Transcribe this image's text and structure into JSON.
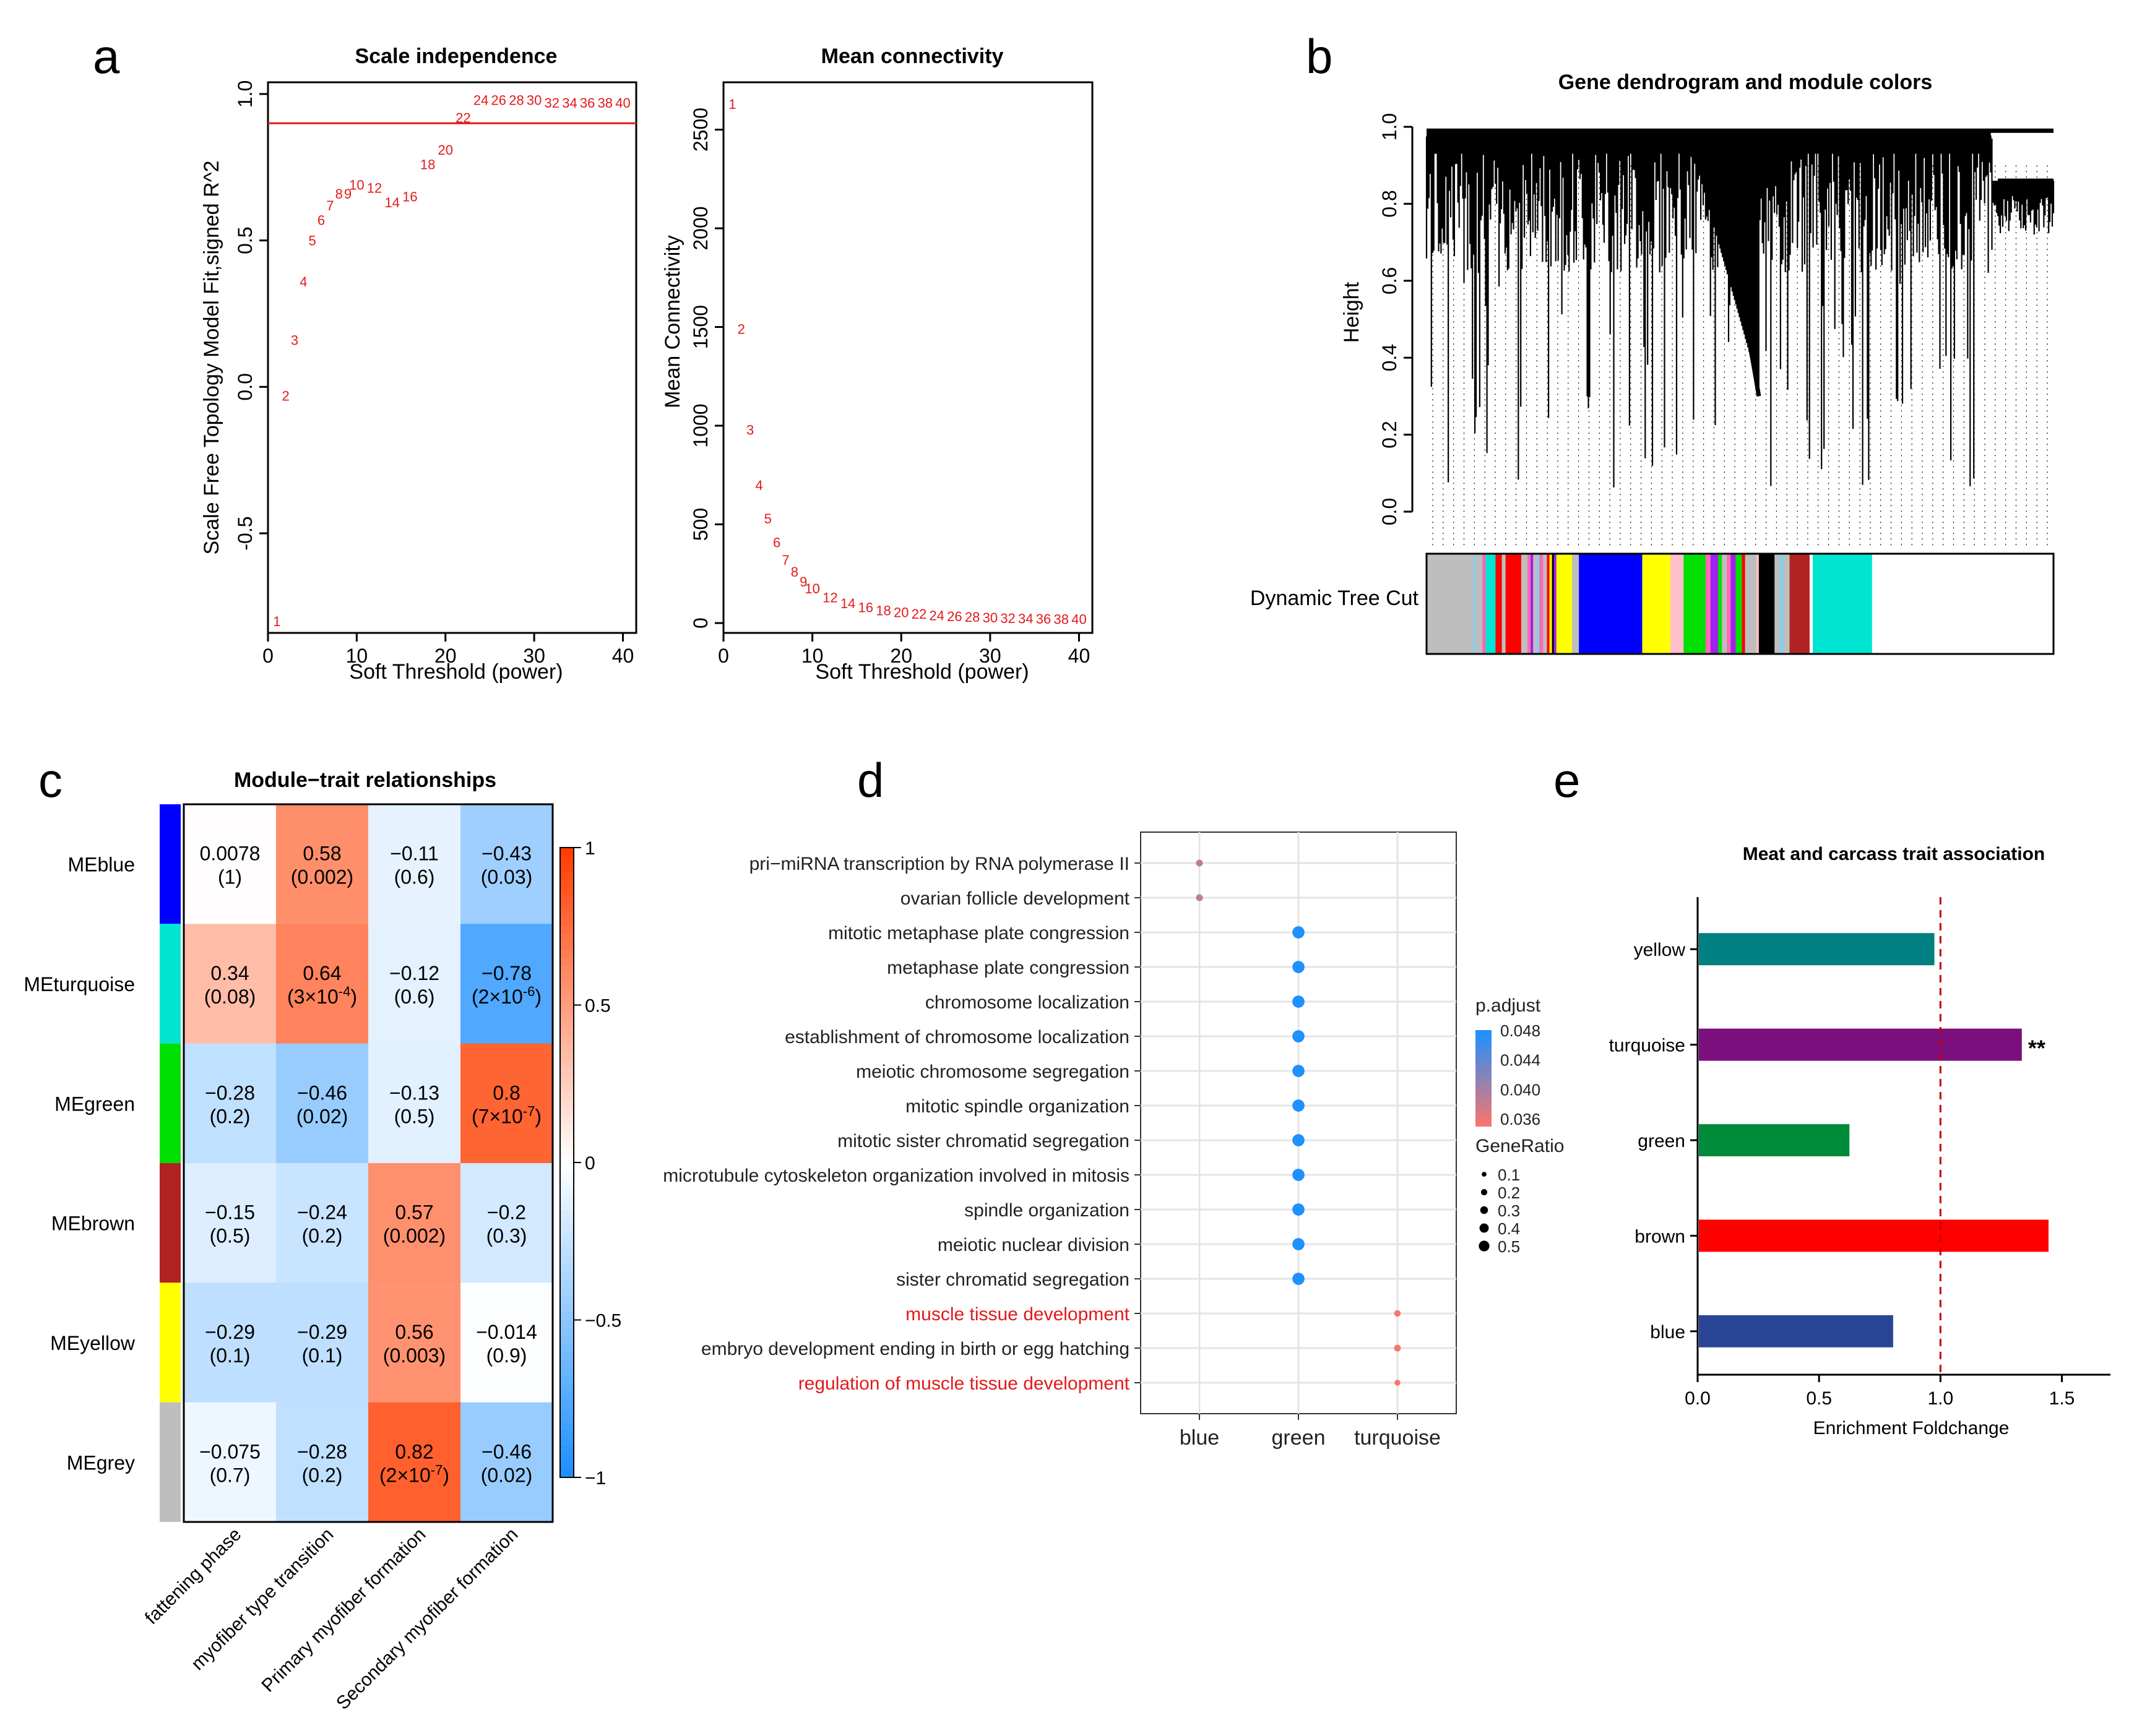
{
  "panel_labels": [
    "a",
    "b",
    "c",
    "d",
    "e"
  ],
  "chart_data": [
    {
      "id": "scale_independence",
      "type": "scatter",
      "title": "Scale independence",
      "xlabel": "Soft Threshold (power)",
      "ylabel": "Scale Free Topology Model Fit,signed R^2",
      "xlim": [
        0,
        41.5
      ],
      "ylim": [
        -0.84,
        1.04
      ],
      "xticks": [
        "0",
        "10",
        "20",
        "30",
        "40"
      ],
      "xtick_values": [
        0,
        10,
        20,
        30,
        40
      ],
      "yticks": [
        "-0.5",
        "0.0",
        "0.5",
        "1.0"
      ],
      "ytick_values": [
        -0.5,
        0.0,
        0.5,
        1.0
      ],
      "hline": 0.9,
      "point_color": "#e31a1c",
      "points": [
        {
          "x": 1,
          "y": -0.8,
          "label": "1"
        },
        {
          "x": 2,
          "y": -0.03,
          "label": "2"
        },
        {
          "x": 3,
          "y": 0.16,
          "label": "3"
        },
        {
          "x": 4,
          "y": 0.36,
          "label": "4"
        },
        {
          "x": 5,
          "y": 0.5,
          "label": "5"
        },
        {
          "x": 6,
          "y": 0.57,
          "label": "6"
        },
        {
          "x": 7,
          "y": 0.62,
          "label": "7"
        },
        {
          "x": 8,
          "y": 0.66,
          "label": "8"
        },
        {
          "x": 9,
          "y": 0.66,
          "label": "9"
        },
        {
          "x": 10,
          "y": 0.69,
          "label": "10"
        },
        {
          "x": 12,
          "y": 0.68,
          "label": "12"
        },
        {
          "x": 14,
          "y": 0.63,
          "label": "14"
        },
        {
          "x": 16,
          "y": 0.65,
          "label": "16"
        },
        {
          "x": 18,
          "y": 0.76,
          "label": "18"
        },
        {
          "x": 20,
          "y": 0.81,
          "label": "20"
        },
        {
          "x": 22,
          "y": 0.92,
          "label": "22"
        },
        {
          "x": 24,
          "y": 0.98,
          "label": "24"
        },
        {
          "x": 26,
          "y": 0.98,
          "label": "26"
        },
        {
          "x": 28,
          "y": 0.98,
          "label": "28"
        },
        {
          "x": 30,
          "y": 0.98,
          "label": "30"
        },
        {
          "x": 32,
          "y": 0.97,
          "label": "32"
        },
        {
          "x": 34,
          "y": 0.97,
          "label": "34"
        },
        {
          "x": 36,
          "y": 0.97,
          "label": "36"
        },
        {
          "x": 38,
          "y": 0.97,
          "label": "38"
        },
        {
          "x": 40,
          "y": 0.97,
          "label": "40"
        }
      ]
    },
    {
      "id": "mean_connectivity",
      "type": "scatter",
      "title": "Mean connectivity",
      "xlabel": "Soft Threshold (power)",
      "ylabel": "Mean Connectivity",
      "xlim": [
        0,
        41.5
      ],
      "ylim": [
        -50,
        2740
      ],
      "xticks": [
        "0",
        "10",
        "20",
        "30",
        "40"
      ],
      "xtick_values": [
        0,
        10,
        20,
        30,
        40
      ],
      "yticks": [
        "0",
        "500",
        "1000",
        "1500",
        "2000",
        "2500"
      ],
      "ytick_values": [
        0,
        500,
        1000,
        1500,
        2000,
        2500
      ],
      "point_color": "#e31a1c",
      "points": [
        {
          "x": 1,
          "y": 2630,
          "label": "1"
        },
        {
          "x": 2,
          "y": 1490,
          "label": "2"
        },
        {
          "x": 3,
          "y": 980,
          "label": "3"
        },
        {
          "x": 4,
          "y": 700,
          "label": "4"
        },
        {
          "x": 5,
          "y": 530,
          "label": "5"
        },
        {
          "x": 6,
          "y": 410,
          "label": "6"
        },
        {
          "x": 7,
          "y": 320,
          "label": "7"
        },
        {
          "x": 8,
          "y": 260,
          "label": "8"
        },
        {
          "x": 9,
          "y": 210,
          "label": "9"
        },
        {
          "x": 10,
          "y": 175,
          "label": "10"
        },
        {
          "x": 12,
          "y": 130,
          "label": "12"
        },
        {
          "x": 14,
          "y": 100,
          "label": "14"
        },
        {
          "x": 16,
          "y": 80,
          "label": "16"
        },
        {
          "x": 18,
          "y": 65,
          "label": "18"
        },
        {
          "x": 20,
          "y": 55,
          "label": "20"
        },
        {
          "x": 22,
          "y": 47,
          "label": "22"
        },
        {
          "x": 24,
          "y": 40,
          "label": "24"
        },
        {
          "x": 26,
          "y": 35,
          "label": "26"
        },
        {
          "x": 28,
          "y": 31,
          "label": "28"
        },
        {
          "x": 30,
          "y": 28,
          "label": "30"
        },
        {
          "x": 32,
          "y": 26,
          "label": "32"
        },
        {
          "x": 34,
          "y": 24,
          "label": "34"
        },
        {
          "x": 36,
          "y": 22,
          "label": "36"
        },
        {
          "x": 38,
          "y": 21,
          "label": "38"
        },
        {
          "x": 40,
          "y": 20,
          "label": "40"
        }
      ]
    },
    {
      "id": "gene_dendrogram",
      "type": "other",
      "title": "Gene dendrogram and module colors",
      "ylabel": "Height",
      "ylim": [
        0,
        1
      ],
      "yticks": [
        "0.0",
        "0.2",
        "0.4",
        "0.6",
        "0.8",
        "1.0"
      ],
      "ytick_values": [
        0,
        0.2,
        0.4,
        0.6,
        0.8,
        1.0
      ],
      "colorbar_label": "Dynamic Tree Cut",
      "module_segments": [
        {
          "color": "#bebebe",
          "frac": 0.075
        },
        {
          "color": "#87ceeb",
          "frac": 0.004
        },
        {
          "color": "#bebebe",
          "frac": 0.01
        },
        {
          "color": "#ff69b4",
          "frac": 0.005
        },
        {
          "color": "#00e5d1",
          "frac": 0.016
        },
        {
          "color": "#ff0000",
          "frac": 0.01
        },
        {
          "color": "#bebebe",
          "frac": 0.006
        },
        {
          "color": "#ff0000",
          "frac": 0.025
        },
        {
          "color": "#bebebe",
          "frac": 0.01
        },
        {
          "color": "#ff69b4",
          "frac": 0.005
        },
        {
          "color": "#a020f0",
          "frac": 0.004
        },
        {
          "color": "#bebebe",
          "frac": 0.006
        },
        {
          "color": "#87ceeb",
          "frac": 0.004
        },
        {
          "color": "#ff69b4",
          "frac": 0.006
        },
        {
          "color": "#bebebe",
          "frac": 0.006
        },
        {
          "color": "#ff0000",
          "frac": 0.004
        },
        {
          "color": "#ffff00",
          "frac": 0.004
        },
        {
          "color": "#000000",
          "frac": 0.003
        },
        {
          "color": "#a020f0",
          "frac": 0.004
        },
        {
          "color": "#ffff00",
          "frac": 0.025
        },
        {
          "color": "#bebebe",
          "frac": 0.011
        },
        {
          "color": "#0000ff",
          "frac": 0.101
        },
        {
          "color": "#ffff00",
          "frac": 0.045
        },
        {
          "color": "#ffc0cb",
          "frac": 0.021
        },
        {
          "color": "#00e000",
          "frac": 0.035
        },
        {
          "color": "#ff69b4",
          "frac": 0.008
        },
        {
          "color": "#a020f0",
          "frac": 0.012
        },
        {
          "color": "#00e000",
          "frac": 0.006
        },
        {
          "color": "#bebebe",
          "frac": 0.008
        },
        {
          "color": "#ff69b4",
          "frac": 0.006
        },
        {
          "color": "#a020f0",
          "frac": 0.008
        },
        {
          "color": "#00e000",
          "frac": 0.01
        },
        {
          "color": "#ff0000",
          "frac": 0.005
        },
        {
          "color": "#bebebe",
          "frac": 0.018
        },
        {
          "color": "#ffc0cb",
          "frac": 0.004
        },
        {
          "color": "#000000",
          "frac": 0.025
        },
        {
          "color": "#bebebe",
          "frac": 0.008
        },
        {
          "color": "#87ceeb",
          "frac": 0.006
        },
        {
          "color": "#bebebe",
          "frac": 0.01
        },
        {
          "color": "#b22222",
          "frac": 0.032
        },
        {
          "color": "#ffffff",
          "frac": 0.005
        },
        {
          "color": "#00e5d1",
          "frac": 0.094
        }
      ]
    },
    {
      "id": "module_trait",
      "type": "heatmap",
      "title": "Module−trait relationships",
      "rows": [
        "MEblue",
        "MEturquoise",
        "MEgreen",
        "MEbrown",
        "MEyellow",
        "MEgrey"
      ],
      "row_colors": [
        "#0000ff",
        "#00e5d1",
        "#00e000",
        "#b22222",
        "#ffff00",
        "#bebebe"
      ],
      "columns": [
        "fattening phase",
        "myofiber type transition",
        "Primary myofiber formation",
        "Secondary myofiber formation"
      ],
      "values": [
        [
          0.0078,
          0.58,
          -0.11,
          -0.43
        ],
        [
          0.34,
          0.64,
          -0.12,
          -0.78
        ],
        [
          -0.28,
          -0.46,
          -0.13,
          0.8
        ],
        [
          -0.15,
          -0.24,
          0.57,
          -0.2
        ],
        [
          -0.29,
          -0.29,
          0.56,
          -0.014
        ],
        [
          -0.075,
          -0.28,
          0.82,
          -0.46
        ]
      ],
      "cells": [
        [
          {
            "r": "0.0078",
            "p": "(1)"
          },
          {
            "r": "0.58",
            "p": "(0.002)"
          },
          {
            "r": "−0.11",
            "p": "(0.6)"
          },
          {
            "r": "−0.43",
            "p": "(0.03)"
          }
        ],
        [
          {
            "r": "0.34",
            "p": "(0.08)"
          },
          {
            "r": "0.64",
            "p": "(3×10",
            "pe": "-4",
            "pc": ")"
          },
          {
            "r": "−0.12",
            "p": "(0.6)"
          },
          {
            "r": "−0.78",
            "p": "(2×10",
            "pe": "-6",
            "pc": ")"
          }
        ],
        [
          {
            "r": "−0.28",
            "p": "(0.2)"
          },
          {
            "r": "−0.46",
            "p": "(0.02)"
          },
          {
            "r": "−0.13",
            "p": "(0.5)"
          },
          {
            "r": "0.8",
            "p": "(7×10",
            "pe": "-7",
            "pc": ")"
          }
        ],
        [
          {
            "r": "−0.15",
            "p": "(0.5)"
          },
          {
            "r": "−0.24",
            "p": "(0.2)"
          },
          {
            "r": "0.57",
            "p": "(0.002)"
          },
          {
            "r": "−0.2",
            "p": "(0.3)"
          }
        ],
        [
          {
            "r": "−0.29",
            "p": "(0.1)"
          },
          {
            "r": "−0.29",
            "p": "(0.1)"
          },
          {
            "r": "0.56",
            "p": "(0.003)"
          },
          {
            "r": "−0.014",
            "p": "(0.9)"
          }
        ],
        [
          {
            "r": "−0.075",
            "p": "(0.7)"
          },
          {
            "r": "−0.28",
            "p": "(0.2)"
          },
          {
            "r": "0.82",
            "p": "(2×10",
            "pe": "-7",
            "pc": ")"
          },
          {
            "r": "−0.46",
            "p": "(0.02)"
          }
        ]
      ],
      "color_scale": {
        "min": -1,
        "max": 1,
        "low": "#1e90ff",
        "mid": "#ffffff",
        "high": "#ff3d00"
      },
      "scale_ticks": [
        "1",
        "0.5",
        "0",
        "−0.5",
        "−1"
      ],
      "scale_tick_values": [
        1,
        0.5,
        0,
        -0.5,
        -1
      ]
    },
    {
      "id": "go_enrichment",
      "type": "scatter",
      "categories": [
        "blue",
        "green",
        "turquoise"
      ],
      "terms": [
        {
          "label": "pri−miRNA transcription by RNA polymerase II",
          "module": "blue",
          "padj": 0.0385,
          "ratio": 0.12,
          "highlight": false
        },
        {
          "label": "ovarian follicle development",
          "module": "blue",
          "padj": 0.0385,
          "ratio": 0.12,
          "highlight": false
        },
        {
          "label": "mitotic metaphase plate congression",
          "module": "green",
          "padj": 0.048,
          "ratio": 0.45,
          "highlight": false
        },
        {
          "label": "metaphase plate congression",
          "module": "green",
          "padj": 0.048,
          "ratio": 0.45,
          "highlight": false
        },
        {
          "label": "chromosome localization",
          "module": "green",
          "padj": 0.048,
          "ratio": 0.45,
          "highlight": false
        },
        {
          "label": "establishment of chromosome localization",
          "module": "green",
          "padj": 0.048,
          "ratio": 0.45,
          "highlight": false
        },
        {
          "label": "meiotic chromosome segregation",
          "module": "green",
          "padj": 0.048,
          "ratio": 0.45,
          "highlight": false
        },
        {
          "label": "mitotic spindle organization",
          "module": "green",
          "padj": 0.048,
          "ratio": 0.45,
          "highlight": false
        },
        {
          "label": "mitotic sister chromatid segregation",
          "module": "green",
          "padj": 0.048,
          "ratio": 0.45,
          "highlight": false
        },
        {
          "label": "microtubule cytoskeleton organization involved in mitosis",
          "module": "green",
          "padj": 0.048,
          "ratio": 0.45,
          "highlight": false
        },
        {
          "label": "spindle organization",
          "module": "green",
          "padj": 0.048,
          "ratio": 0.45,
          "highlight": false
        },
        {
          "label": "meiotic nuclear division",
          "module": "green",
          "padj": 0.048,
          "ratio": 0.45,
          "highlight": false
        },
        {
          "label": "sister chromatid segregation",
          "module": "green",
          "padj": 0.048,
          "ratio": 0.45,
          "highlight": false
        },
        {
          "label": "muscle tissue development",
          "module": "turquoise",
          "padj": 0.035,
          "ratio": 0.1,
          "highlight": true
        },
        {
          "label": "embryo development ending in birth or egg hatching",
          "module": "turquoise",
          "padj": 0.035,
          "ratio": 0.12,
          "highlight": false
        },
        {
          "label": "regulation of muscle tissue development",
          "module": "turquoise",
          "padj": 0.035,
          "ratio": 0.06,
          "highlight": true
        }
      ],
      "legend_padj_title": "p.adjust",
      "legend_padj_ticks": [
        "0.048",
        "0.044",
        "0.040",
        "0.036"
      ],
      "legend_padj_values": [
        0.048,
        0.044,
        0.04,
        0.036
      ],
      "legend_ratio_title": "GeneRatio",
      "legend_ratio_ticks": [
        "0.1",
        "0.2",
        "0.3",
        "0.4",
        "0.5"
      ],
      "legend_ratio_values": [
        0.1,
        0.2,
        0.3,
        0.4,
        0.5
      ],
      "color_low_padj": "#f8766d",
      "color_high_padj": "#1e90ff",
      "highlight_color": "#e31a1c"
    },
    {
      "id": "trait_association",
      "type": "bar",
      "title": "Meat and carcass trait association",
      "xlabel": "Enrichment Foldchange",
      "categories": [
        "yellow",
        "turquoise",
        "green",
        "brown",
        "blue"
      ],
      "values": [
        0.97,
        1.33,
        0.62,
        1.44,
        0.8
      ],
      "colors": [
        "#008080",
        "#7b0f7e",
        "#008b3a",
        "#ff0000",
        "#2a4595"
      ],
      "annotations": [
        "",
        "**",
        "",
        "",
        ""
      ],
      "xlim": [
        0,
        1.7
      ],
      "xticks": [
        "0.0",
        "0.5",
        "1.0",
        "1.5"
      ],
      "xtick_values": [
        0,
        0.5,
        1.0,
        1.5
      ],
      "ref_line": 1.0
    }
  ]
}
